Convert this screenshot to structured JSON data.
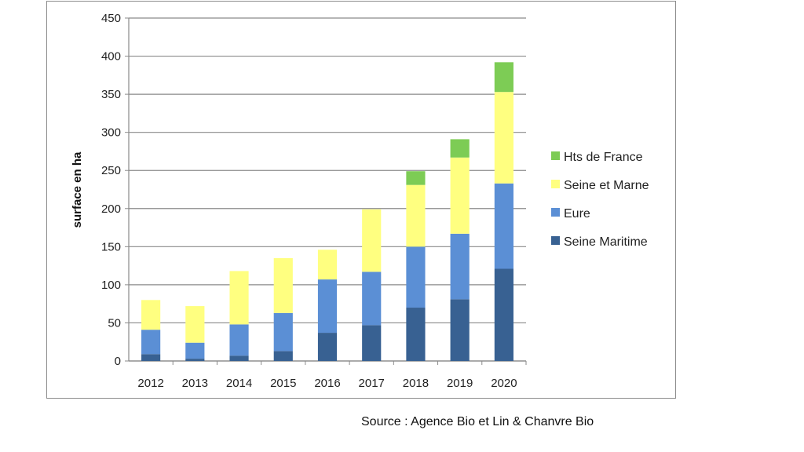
{
  "chart_data": {
    "type": "bar",
    "stacked": true,
    "title": "",
    "xlabel": "",
    "ylabel": "surface en ha",
    "ylim": [
      0,
      450
    ],
    "yticks": [
      0,
      50,
      100,
      150,
      200,
      250,
      300,
      350,
      400,
      450
    ],
    "grid": true,
    "legend_position": "right",
    "categories": [
      "2012",
      "2013",
      "2014",
      "2015",
      "2016",
      "2017",
      "2018",
      "2019",
      "2020"
    ],
    "series": [
      {
        "name": "Seine Maritime",
        "color": "#386192",
        "values": [
          9,
          3,
          7,
          13,
          37,
          47,
          70,
          81,
          121
        ]
      },
      {
        "name": "Eure",
        "color": "#5b8fd5",
        "values": [
          32,
          21,
          41,
          50,
          70,
          70,
          80,
          86,
          112
        ]
      },
      {
        "name": "Seine et Marne",
        "color": "#ffff80",
        "values": [
          39,
          48,
          70,
          72,
          39,
          82,
          81,
          100,
          120
        ]
      },
      {
        "name": "Hts de France",
        "color": "#7dcc55",
        "values": [
          0,
          0,
          0,
          0,
          0,
          0,
          18,
          24,
          39
        ]
      }
    ]
  },
  "source": "Source : Agence Bio et Lin & Chanvre Bio"
}
